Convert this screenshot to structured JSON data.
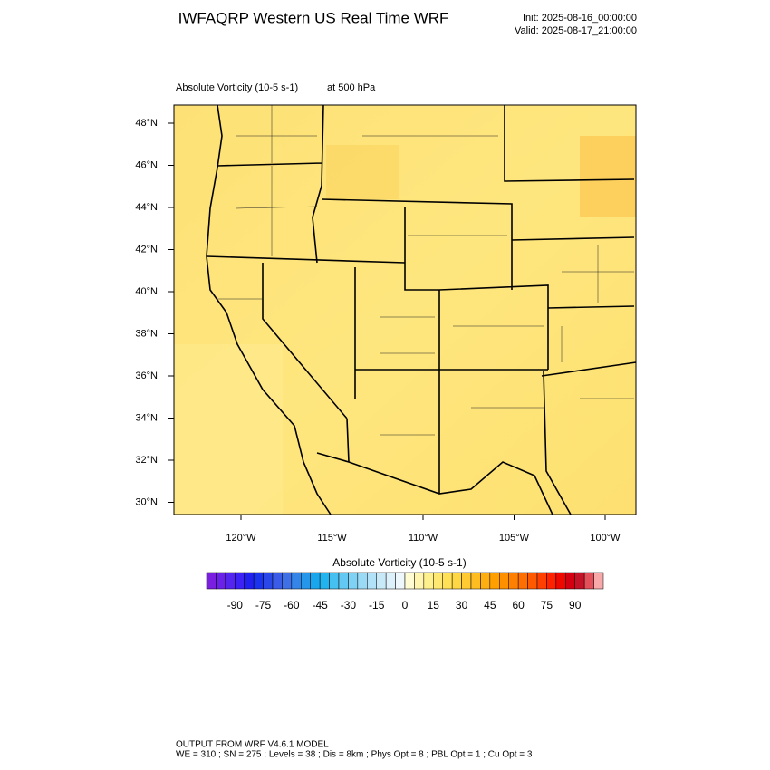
{
  "header": {
    "title": "IWFAQRP Western US Real Time WRF",
    "init": "Init: 2025-08-16_00:00:00",
    "valid": "Valid: 2025-08-17_21:00:00"
  },
  "map": {
    "field_label": "Absolute Vorticity   (10-5 s-1)",
    "level": "at   500 hPa",
    "lat_ticks": [
      "48°N",
      "46°N",
      "44°N",
      "42°N",
      "40°N",
      "38°N",
      "36°N",
      "34°N",
      "32°N",
      "30°N"
    ],
    "lon_ticks": [
      "120°W",
      "115°W",
      "110°W",
      "105°W",
      "100°W"
    ]
  },
  "colorbar": {
    "title": "Absolute Vorticity  (10-5 s-1)",
    "ticks": [
      "-90",
      "-75",
      "-60",
      "-45",
      "-30",
      "-15",
      "0",
      "15",
      "30",
      "45",
      "60",
      "75",
      "90"
    ],
    "colors": [
      "#7a1fe0",
      "#6a22e8",
      "#5525f0",
      "#3c22f4",
      "#2020f0",
      "#1a33ee",
      "#2a48ea",
      "#3a5ce8",
      "#3f70e6",
      "#3584e8",
      "#2596ea",
      "#1aa6ec",
      "#22b4ee",
      "#45c0f0",
      "#64c9f2",
      "#80d2f4",
      "#9adaf5",
      "#b2e2f7",
      "#c8eaf8",
      "#dcf1fa",
      "#eef8fc",
      "#fffbd2",
      "#fff5ae",
      "#fff08e",
      "#ffe872",
      "#ffe056",
      "#ffd644",
      "#ffca32",
      "#ffbd22",
      "#ffae12",
      "#ffa000",
      "#ff9000",
      "#ff8000",
      "#ff6e00",
      "#ff5a00",
      "#ff4000",
      "#ff2200",
      "#ee0800",
      "#d40012",
      "#c41226",
      "#e4505a",
      "#f8a8a8"
    ]
  },
  "footer": {
    "line1": "OUTPUT FROM WRF V4.6.1 MODEL",
    "line2": "WE = 310 ; SN = 275 ; Levels = 38 ; Dis = 8km ; Phys Opt = 8 ; PBL Opt = 1 ; Cu Opt = 3"
  }
}
